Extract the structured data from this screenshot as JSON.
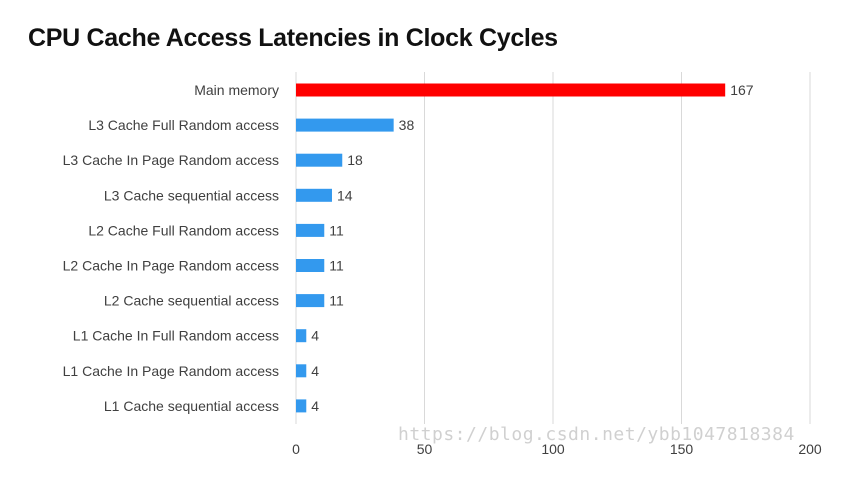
{
  "chart_data": {
    "type": "bar",
    "orientation": "horizontal",
    "title": "CPU Cache Access Latencies in Clock Cycles",
    "categories": [
      "Main memory",
      "L3 Cache Full Random access",
      "L3 Cache In Page Random access",
      "L3 Cache sequential access",
      "L2 Cache Full Random access",
      "L2 Cache In Page Random access",
      "L2 Cache sequential access",
      "L1 Cache In Full Random access",
      "L1 Cache In Page Random access",
      "L1 Cache sequential access"
    ],
    "values": [
      167,
      38,
      18,
      14,
      11,
      11,
      11,
      4,
      4,
      4
    ],
    "bar_colors": [
      "#ff0000",
      "#3399ee",
      "#3399ee",
      "#3399ee",
      "#3399ee",
      "#3399ee",
      "#3399ee",
      "#3399ee",
      "#3399ee",
      "#3399ee"
    ],
    "xlim": [
      0,
      200
    ],
    "xticks": [
      0,
      50,
      100,
      150,
      200
    ],
    "grid": "vertical",
    "legend": "none",
    "data_labels": true
  },
  "watermark": "https://blog.csdn.net/ybb1047818384"
}
